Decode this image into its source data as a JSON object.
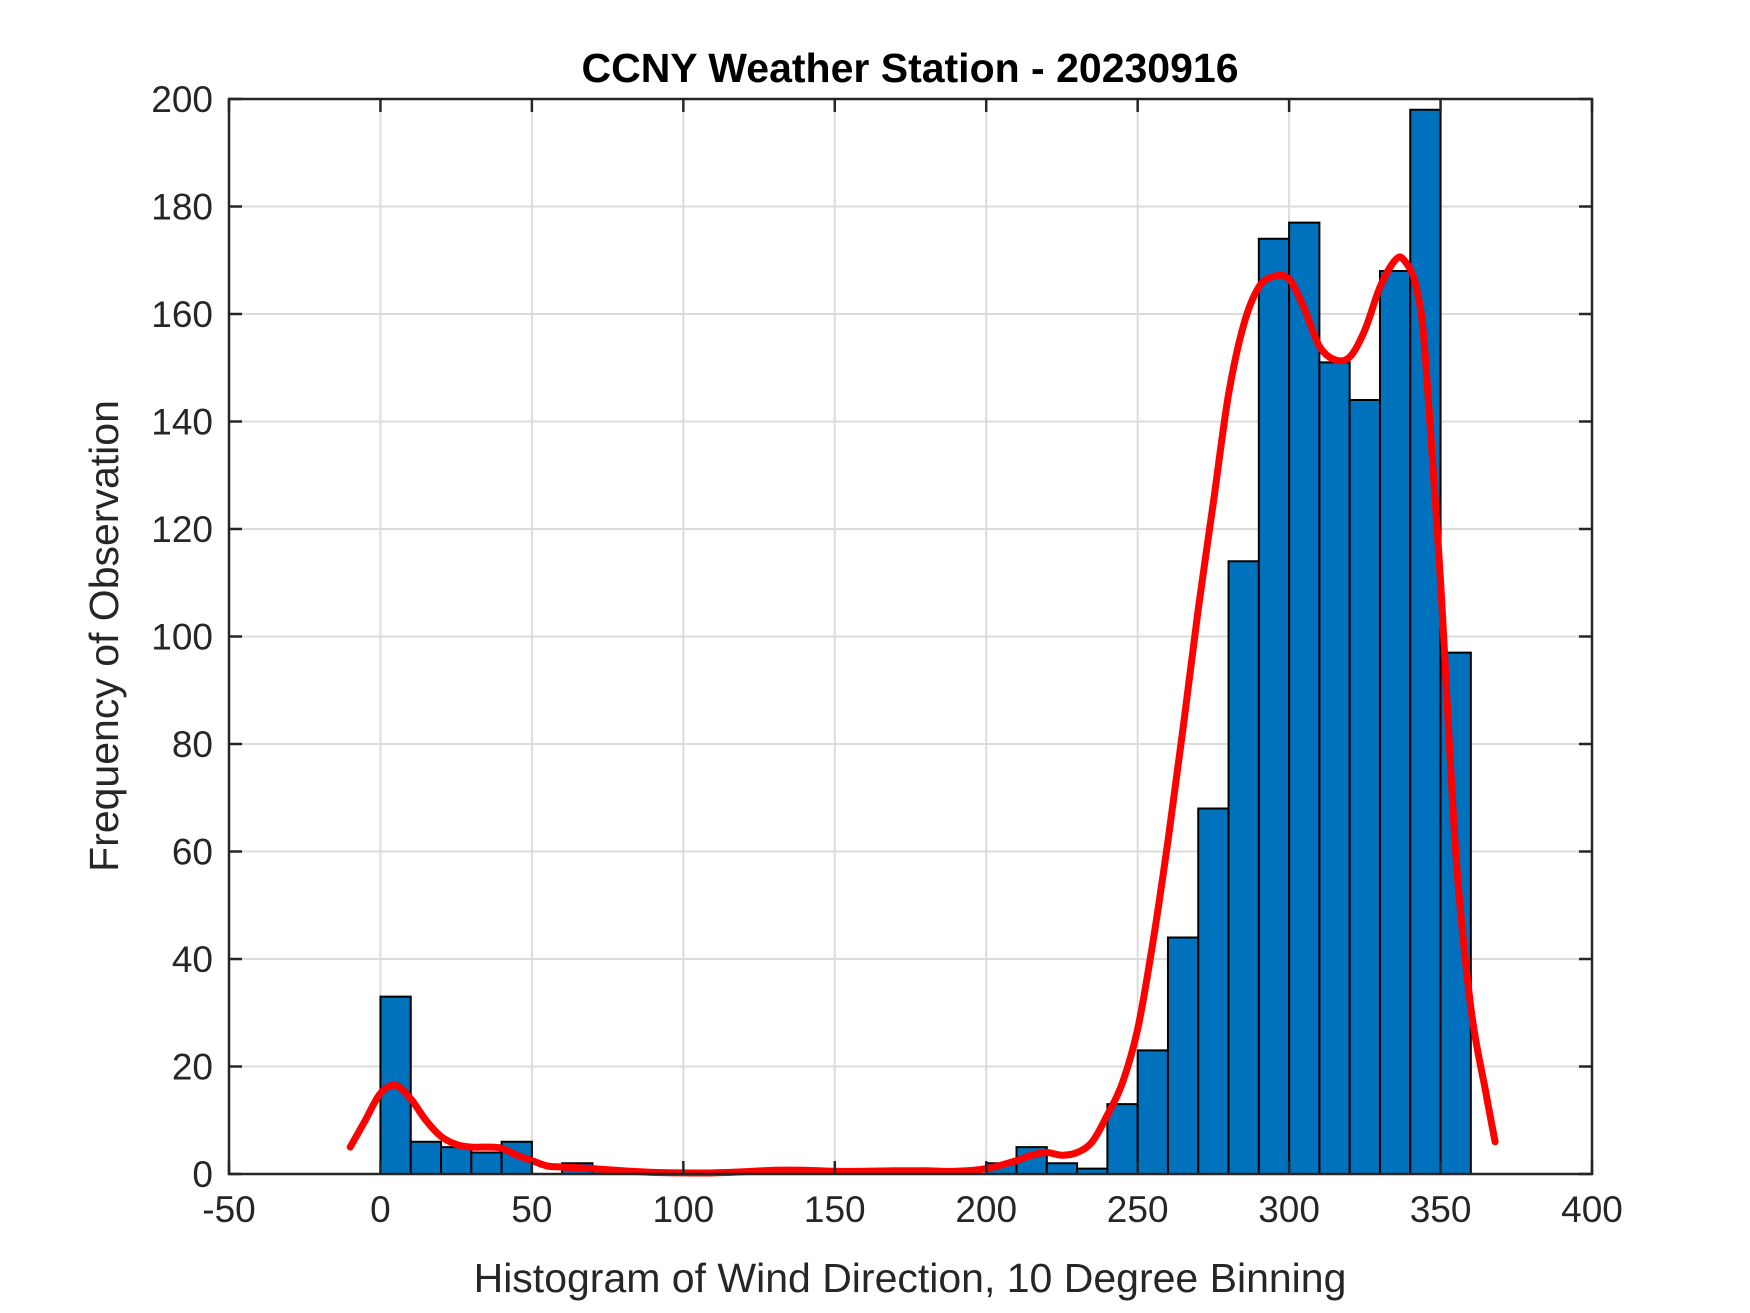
{
  "chart_data": {
    "type": "bar",
    "title": "CCNY Weather Station - 20230916",
    "xlabel": "Histogram of Wind Direction, 10 Degree Binning",
    "ylabel": "Frequency of Observation",
    "xlim": [
      -50,
      400
    ],
    "ylim": [
      0,
      200
    ],
    "xticks": [
      -50,
      0,
      50,
      100,
      150,
      200,
      250,
      300,
      350,
      400
    ],
    "yticks": [
      0,
      20,
      40,
      60,
      80,
      100,
      120,
      140,
      160,
      180,
      200
    ],
    "xtick_labels": [
      "-50",
      "0",
      "50",
      "100",
      "150",
      "200",
      "250",
      "300",
      "350",
      "400"
    ],
    "ytick_labels": [
      "0",
      "20",
      "40",
      "60",
      "80",
      "100",
      "120",
      "140",
      "160",
      "180",
      "200"
    ],
    "grid": true,
    "bin_width": 10,
    "bin_edges_start": 0,
    "values": [
      33,
      6,
      5,
      4,
      6,
      0,
      2,
      1,
      0,
      0,
      0,
      0,
      0,
      1,
      0,
      0,
      0,
      1,
      0,
      0,
      2,
      5,
      2,
      1,
      13,
      23,
      44,
      68,
      114,
      174,
      177,
      151,
      144,
      168,
      198,
      97
    ],
    "bar_color": "#0072BD",
    "bar_edge_color": "#000000",
    "fit_curve": {
      "color": "#FF0000",
      "x": [
        -10,
        -5,
        0,
        5,
        10,
        15,
        20,
        25,
        30,
        35,
        40,
        45,
        50,
        55,
        60,
        70,
        80,
        90,
        100,
        110,
        120,
        130,
        140,
        150,
        160,
        170,
        180,
        190,
        200,
        210,
        215,
        220,
        225,
        230,
        235,
        240,
        245,
        250,
        255,
        260,
        265,
        270,
        275,
        280,
        285,
        290,
        295,
        300,
        305,
        310,
        315,
        320,
        325,
        330,
        335,
        338,
        342,
        345,
        350,
        355,
        360,
        365,
        368
      ],
      "y": [
        5,
        10,
        15,
        16.5,
        14,
        10,
        7,
        5.5,
        5,
        5,
        4.8,
        3.5,
        2.5,
        1.5,
        1.3,
        1,
        0.6,
        0.3,
        0.2,
        0.2,
        0.4,
        0.7,
        0.7,
        0.5,
        0.5,
        0.6,
        0.6,
        0.5,
        1,
        2.5,
        3.5,
        4,
        3.5,
        4,
        6,
        11,
        17,
        27,
        43,
        62,
        83,
        105,
        125,
        145,
        158,
        165,
        167,
        166.5,
        161,
        154,
        151.5,
        152,
        157,
        165,
        170,
        170,
        165,
        152,
        110,
        60,
        31,
        15,
        6
      ]
    }
  }
}
